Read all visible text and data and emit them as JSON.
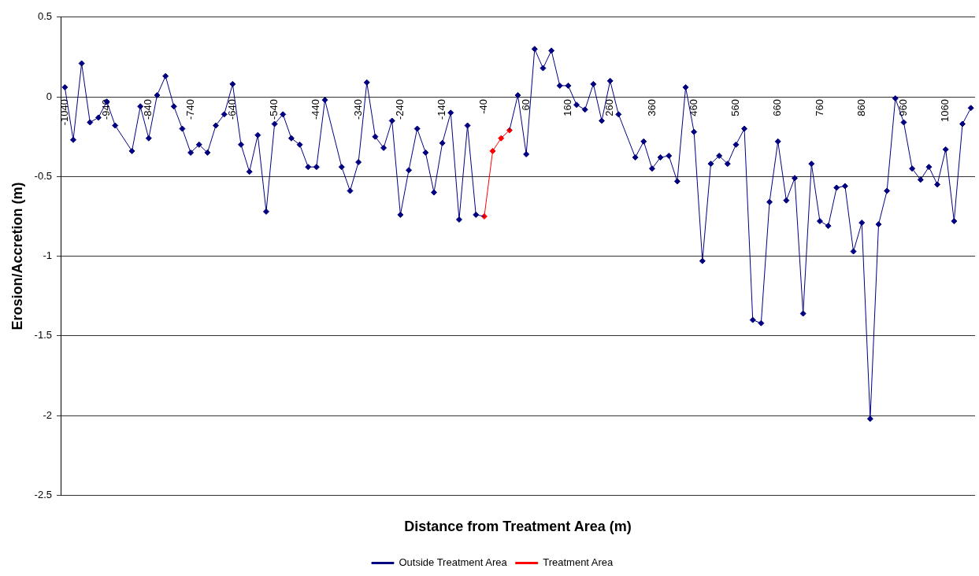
{
  "chart_data": {
    "type": "line",
    "xlabel": "Distance from Treatment Area (m)",
    "ylabel": "Erosion/Accretion (m)",
    "xlim": [
      -1050,
      1130
    ],
    "xticks": [
      -1040,
      -940,
      -840,
      -740,
      -640,
      -540,
      -440,
      -340,
      -240,
      -140,
      -40,
      60,
      160,
      260,
      360,
      460,
      560,
      660,
      760,
      860,
      960,
      1060
    ],
    "ylim": [
      -2.5,
      0.5
    ],
    "yticks": [
      0.5,
      0,
      -0.5,
      -1,
      -1.5,
      -2,
      -2.5
    ],
    "grid": "y",
    "legend": "bottom",
    "marker": "diamond",
    "series": [
      {
        "name": "Outside Treatment Area",
        "color": "#000080",
        "x": [
          -1040,
          -1020,
          -1000,
          -980,
          -960,
          -940,
          -920,
          -880,
          -860,
          -840,
          -820,
          -800,
          -780,
          -760,
          -740,
          -720,
          -700,
          -680,
          -660,
          -640,
          -620,
          -600,
          -580,
          -560,
          -540,
          -520,
          -500,
          -480,
          -460,
          -440,
          -420,
          -380,
          -360,
          -340,
          -320,
          -300,
          -280,
          -260,
          -240,
          -220,
          -200,
          -180,
          -160,
          -140,
          -120,
          -100,
          -80,
          -60,
          -40,
          -20,
          0,
          20,
          40,
          60,
          80,
          100,
          120,
          140,
          160,
          180,
          200,
          220,
          240,
          260,
          280,
          320,
          340,
          360,
          380,
          400,
          420,
          440,
          460,
          480,
          500,
          520,
          540,
          560,
          580,
          600,
          620,
          640,
          660,
          680,
          700,
          720,
          740,
          760,
          780,
          800,
          820,
          840,
          860,
          880,
          900,
          920,
          940,
          960,
          980,
          1000,
          1020,
          1040,
          1060,
          1080,
          1100,
          1120
        ],
        "values": [
          0.06,
          -0.27,
          0.21,
          -0.16,
          -0.13,
          -0.03,
          -0.18,
          -0.34,
          -0.06,
          -0.26,
          0.01,
          0.13,
          -0.06,
          -0.2,
          -0.35,
          -0.3,
          -0.35,
          -0.18,
          -0.11,
          0.08,
          -0.3,
          -0.47,
          -0.24,
          -0.72,
          -0.17,
          -0.11,
          -0.26,
          -0.3,
          -0.44,
          -0.44,
          -0.02,
          -0.44,
          -0.59,
          -0.41,
          0.09,
          -0.25,
          -0.32,
          -0.15,
          -0.74,
          -0.46,
          -0.2,
          -0.35,
          -0.6,
          -0.29,
          -0.1,
          -0.77,
          -0.18,
          -0.74,
          -0.75,
          null,
          null,
          -0.21,
          0.01,
          -0.36,
          0.3,
          0.18,
          0.29,
          0.07,
          0.07,
          -0.05,
          -0.08,
          0.08,
          -0.15,
          0.1,
          -0.11,
          -0.38,
          -0.28,
          -0.45,
          -0.38,
          -0.37,
          -0.53,
          0.06,
          -0.22,
          -1.03,
          -0.42,
          -0.37,
          -0.42,
          -0.3,
          -0.2,
          -1.4,
          -1.42,
          -0.66,
          -0.28,
          -0.65,
          -0.51,
          -1.36,
          -0.42,
          -0.78,
          -0.81,
          -0.57,
          -0.56,
          -0.97,
          -0.79,
          -2.02,
          -0.8,
          -0.59,
          -0.01,
          -0.16,
          -0.45,
          -0.52,
          -0.44,
          -0.55,
          -0.33,
          -0.78,
          -0.17,
          -0.07
        ]
      },
      {
        "name": "Treatment Area",
        "color": "#ff0000",
        "x": [
          -40,
          -20,
          0,
          20
        ],
        "values": [
          -0.75,
          -0.34,
          -0.26,
          -0.21
        ]
      }
    ]
  }
}
